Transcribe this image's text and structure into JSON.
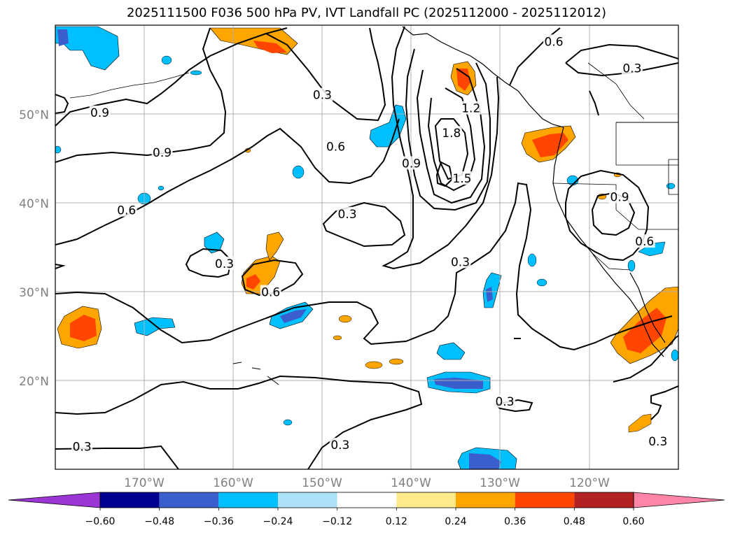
{
  "title": "2025111500 F036 500 hPa PV, IVT Landfall PC (2025112000 - 2025112012)",
  "map": {
    "lon_range": [
      -180,
      -110
    ],
    "lat_range": [
      10,
      60
    ],
    "lat_ticks": [
      "20°N",
      "30°N",
      "40°N",
      "50°N"
    ],
    "lon_ticks": [
      "170°W",
      "160°W",
      "150°W",
      "140°W",
      "130°W",
      "120°W"
    ],
    "contour_labels": [
      {
        "text": "0.3",
        "lon": -150,
        "lat": 52
      },
      {
        "text": "0.6",
        "lon": -148.5,
        "lat": 46.2
      },
      {
        "text": "0.9",
        "lon": -175,
        "lat": 50
      },
      {
        "text": "0.9",
        "lon": -168,
        "lat": 45.5
      },
      {
        "text": "0.6",
        "lon": -172,
        "lat": 39
      },
      {
        "text": "0.3",
        "lon": -147.2,
        "lat": 38.6
      },
      {
        "text": "0.3",
        "lon": -161,
        "lat": 33
      },
      {
        "text": "0.6",
        "lon": -155.8,
        "lat": 29.8
      },
      {
        "text": "0.9",
        "lon": -140,
        "lat": 44.3
      },
      {
        "text": "1.8",
        "lon": -135.5,
        "lat": 47.7
      },
      {
        "text": "1.5",
        "lon": -134.3,
        "lat": 42.6
      },
      {
        "text": "1.2",
        "lon": -133.3,
        "lat": 50.5
      },
      {
        "text": "0.3",
        "lon": -134.5,
        "lat": 33.2
      },
      {
        "text": "0.6",
        "lon": -124,
        "lat": 58
      },
      {
        "text": "0.3",
        "lon": -115.2,
        "lat": 55
      },
      {
        "text": "0.9",
        "lon": -116.6,
        "lat": 40.5
      },
      {
        "text": "0.6",
        "lon": -113.8,
        "lat": 35.5
      },
      {
        "text": "0.3",
        "lon": -129.5,
        "lat": 17.5
      },
      {
        "text": "0.3",
        "lon": -112.3,
        "lat": 13
      },
      {
        "text": "0.3",
        "lon": -148,
        "lat": 12.6
      },
      {
        "text": "0.3",
        "lon": -177,
        "lat": 12.4
      }
    ]
  },
  "colorbar": {
    "tick_labels": [
      "−0.60",
      "−0.48",
      "−0.36",
      "−0.24",
      "−0.12",
      "0.12",
      "0.24",
      "0.36",
      "0.48",
      "0.60"
    ],
    "colors": [
      "#9b35d4",
      "#000090",
      "#3a5fcd",
      "#00bfff",
      "#ade1fa",
      "#ffffff",
      "#ffe98a",
      "#ffa500",
      "#ff4500",
      "#b22222",
      "#ff85a8"
    ]
  },
  "colors": {
    "grid": "#b0b0b0",
    "contour": "#000000",
    "coast": "#000000"
  }
}
